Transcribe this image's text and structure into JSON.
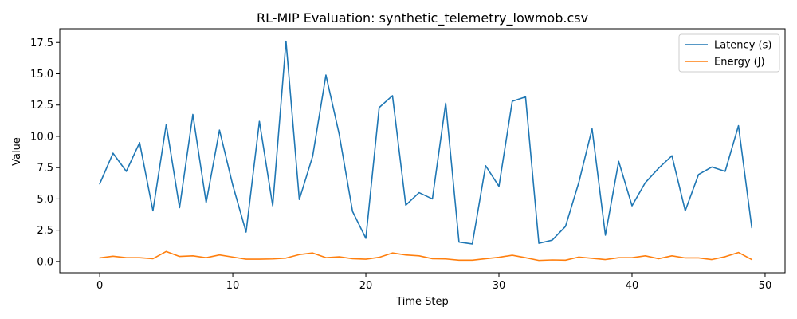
{
  "chart_data": {
    "type": "line",
    "title": "RL-MIP Evaluation: synthetic_telemetry_lowmob.csv",
    "xlabel": "Time Step",
    "ylabel": "Value",
    "xlim": [
      -3,
      51.5
    ],
    "ylim": [
      -0.9,
      18.6
    ],
    "xticks": [
      0,
      10,
      20,
      30,
      40,
      50
    ],
    "yticks": [
      0.0,
      2.5,
      5.0,
      7.5,
      10.0,
      12.5,
      15.0,
      17.5
    ],
    "ytick_labels": [
      "0.0",
      "2.5",
      "5.0",
      "7.5",
      "10.0",
      "12.5",
      "15.0",
      "17.5"
    ],
    "grid": false,
    "legend_position": "top-right",
    "series": [
      {
        "name": "Latency (s)",
        "color": "#1f77b4",
        "values": [
          6.2,
          8.65,
          7.2,
          9.5,
          4.05,
          10.95,
          4.3,
          11.75,
          4.7,
          10.5,
          6.1,
          2.35,
          11.2,
          4.45,
          17.6,
          4.95,
          8.4,
          14.9,
          10.15,
          4.0,
          1.85,
          12.3,
          13.25,
          4.5,
          5.5,
          5.0,
          12.65,
          1.55,
          1.4,
          7.65,
          6.0,
          12.8,
          13.15,
          1.45,
          1.7,
          2.8,
          6.3,
          10.6,
          2.1,
          8.0,
          4.45,
          6.3,
          7.45,
          8.45,
          4.05,
          6.95,
          7.55,
          7.2,
          10.85,
          2.7
        ]
      },
      {
        "name": "Energy (J)",
        "color": "#ff7f0e",
        "values": [
          0.28,
          0.42,
          0.3,
          0.3,
          0.22,
          0.8,
          0.4,
          0.45,
          0.3,
          0.52,
          0.35,
          0.18,
          0.18,
          0.2,
          0.27,
          0.55,
          0.68,
          0.3,
          0.37,
          0.22,
          0.18,
          0.33,
          0.68,
          0.52,
          0.45,
          0.22,
          0.2,
          0.1,
          0.1,
          0.22,
          0.33,
          0.5,
          0.3,
          0.08,
          0.12,
          0.1,
          0.35,
          0.25,
          0.15,
          0.3,
          0.3,
          0.45,
          0.22,
          0.45,
          0.28,
          0.28,
          0.15,
          0.38,
          0.72,
          0.15
        ]
      }
    ]
  }
}
